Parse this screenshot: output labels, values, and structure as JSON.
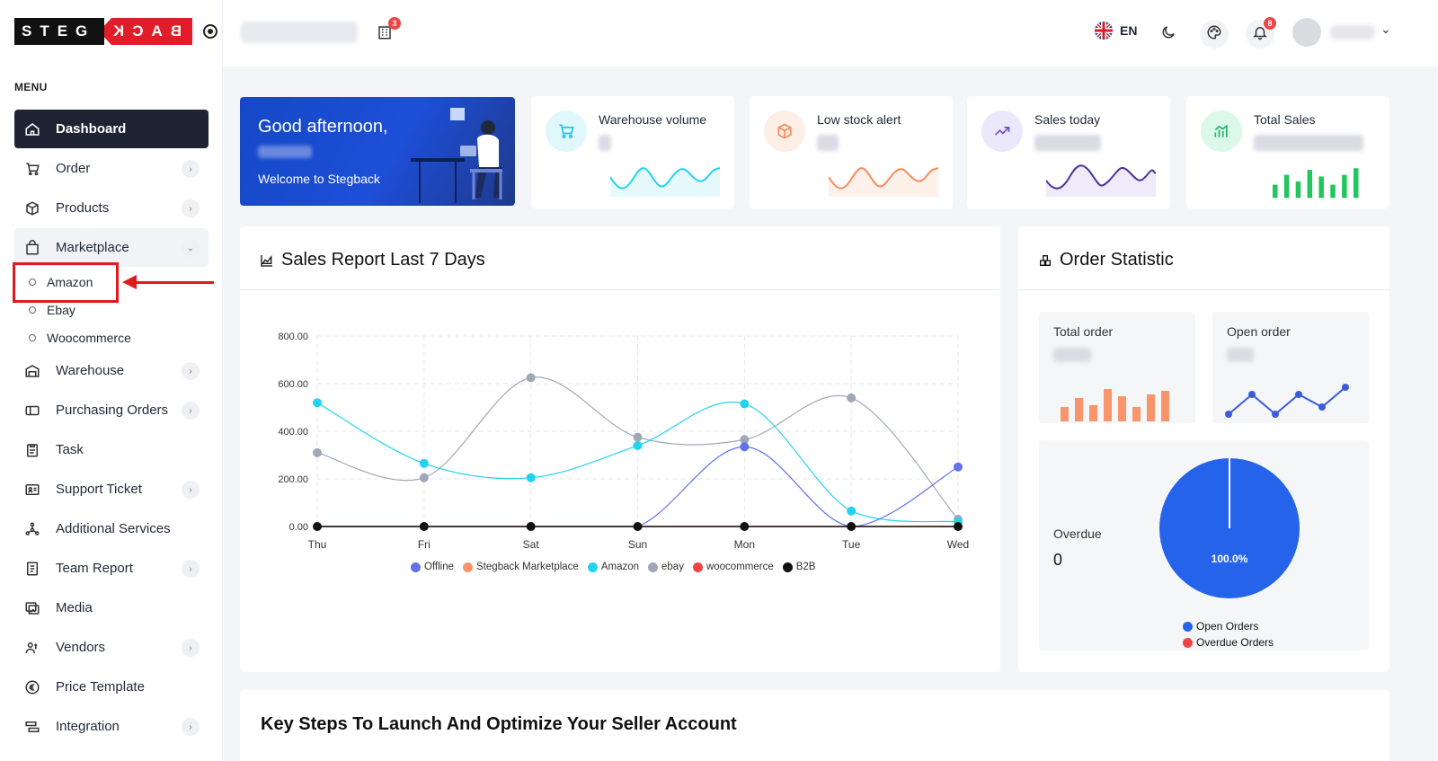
{
  "logo": {
    "left_text": "STEG",
    "right_text": "BACK"
  },
  "sidebar": {
    "menu_title": "MENU",
    "items": [
      {
        "label": "Dashboard",
        "icon": "home-icon"
      },
      {
        "label": "Order",
        "icon": "cart-icon"
      },
      {
        "label": "Products",
        "icon": "box-icon"
      },
      {
        "label": "Marketplace",
        "icon": "bag-icon"
      },
      {
        "label": "Warehouse",
        "icon": "warehouse-icon"
      },
      {
        "label": "Purchasing Orders",
        "icon": "ticket-icon"
      },
      {
        "label": "Task",
        "icon": "clipboard-icon"
      },
      {
        "label": "Support Ticket",
        "icon": "support-icon"
      },
      {
        "label": "Additional Services",
        "icon": "services-icon"
      },
      {
        "label": "Team Report",
        "icon": "report-icon"
      },
      {
        "label": "Media",
        "icon": "media-icon"
      },
      {
        "label": "Vendors",
        "icon": "vendors-icon"
      },
      {
        "label": "Price Template",
        "icon": "euro-icon"
      },
      {
        "label": "Integration",
        "icon": "integration-icon"
      }
    ],
    "marketplace_sub": [
      "Amazon",
      "Ebay",
      "Woocommerce"
    ]
  },
  "header": {
    "store_badge": "3",
    "lang": "EN",
    "notif_badge": "8"
  },
  "welcome": {
    "title": "Good afternoon,",
    "subtitle": "Welcome to Stegback"
  },
  "stats": [
    {
      "label": "Warehouse volume",
      "color": "#22d3ee"
    },
    {
      "label": "Low stock alert",
      "color": "#fb923c"
    },
    {
      "label": "Sales today",
      "color": "#5b3bb4"
    },
    {
      "label": "Total Sales",
      "color": "#22c55e"
    }
  ],
  "sales_report": {
    "title": "Sales Report Last 7 Days"
  },
  "order_statistic": {
    "title": "Order Statistic",
    "total_order_label": "Total order",
    "open_order_label": "Open order",
    "overdue_label": "Overdue",
    "overdue_value": "0",
    "pie_label": "100.0%",
    "legend": [
      {
        "name": "Open Orders",
        "color": "#2563eb"
      },
      {
        "name": "Overdue Orders",
        "color": "#ef4444"
      }
    ]
  },
  "bottom": {
    "title": "Key Steps To Launch And Optimize Your Seller Account"
  },
  "chart_data": {
    "type": "line",
    "categories": [
      "Thu",
      "Fri",
      "Sat",
      "Sun",
      "Mon",
      "Tue",
      "Wed"
    ],
    "yticks": [
      "0.00",
      "200.00",
      "400.00",
      "600.00",
      "800.00"
    ],
    "ylim": [
      0,
      800
    ],
    "grid": true,
    "legend_position": "bottom",
    "series": [
      {
        "name": "Offline",
        "color": "#6272e8",
        "values": [
          0,
          0,
          0,
          0,
          335,
          0,
          250
        ]
      },
      {
        "name": "Stegback Marketplace",
        "color": "#f8956a",
        "values": [
          0,
          0,
          0,
          0,
          0,
          0,
          0
        ]
      },
      {
        "name": "Amazon",
        "color": "#22d3ee",
        "values": [
          520,
          265,
          205,
          340,
          515,
          65,
          20
        ]
      },
      {
        "name": "ebay",
        "color": "#a0a8b8",
        "values": [
          310,
          205,
          625,
          375,
          365,
          540,
          30
        ]
      },
      {
        "name": "woocommerce",
        "color": "#ef4444",
        "values": [
          0,
          0,
          0,
          0,
          0,
          0,
          0
        ]
      },
      {
        "name": "B2B",
        "color": "#111111",
        "values": [
          0,
          0,
          0,
          0,
          0,
          0,
          0
        ]
      }
    ]
  }
}
